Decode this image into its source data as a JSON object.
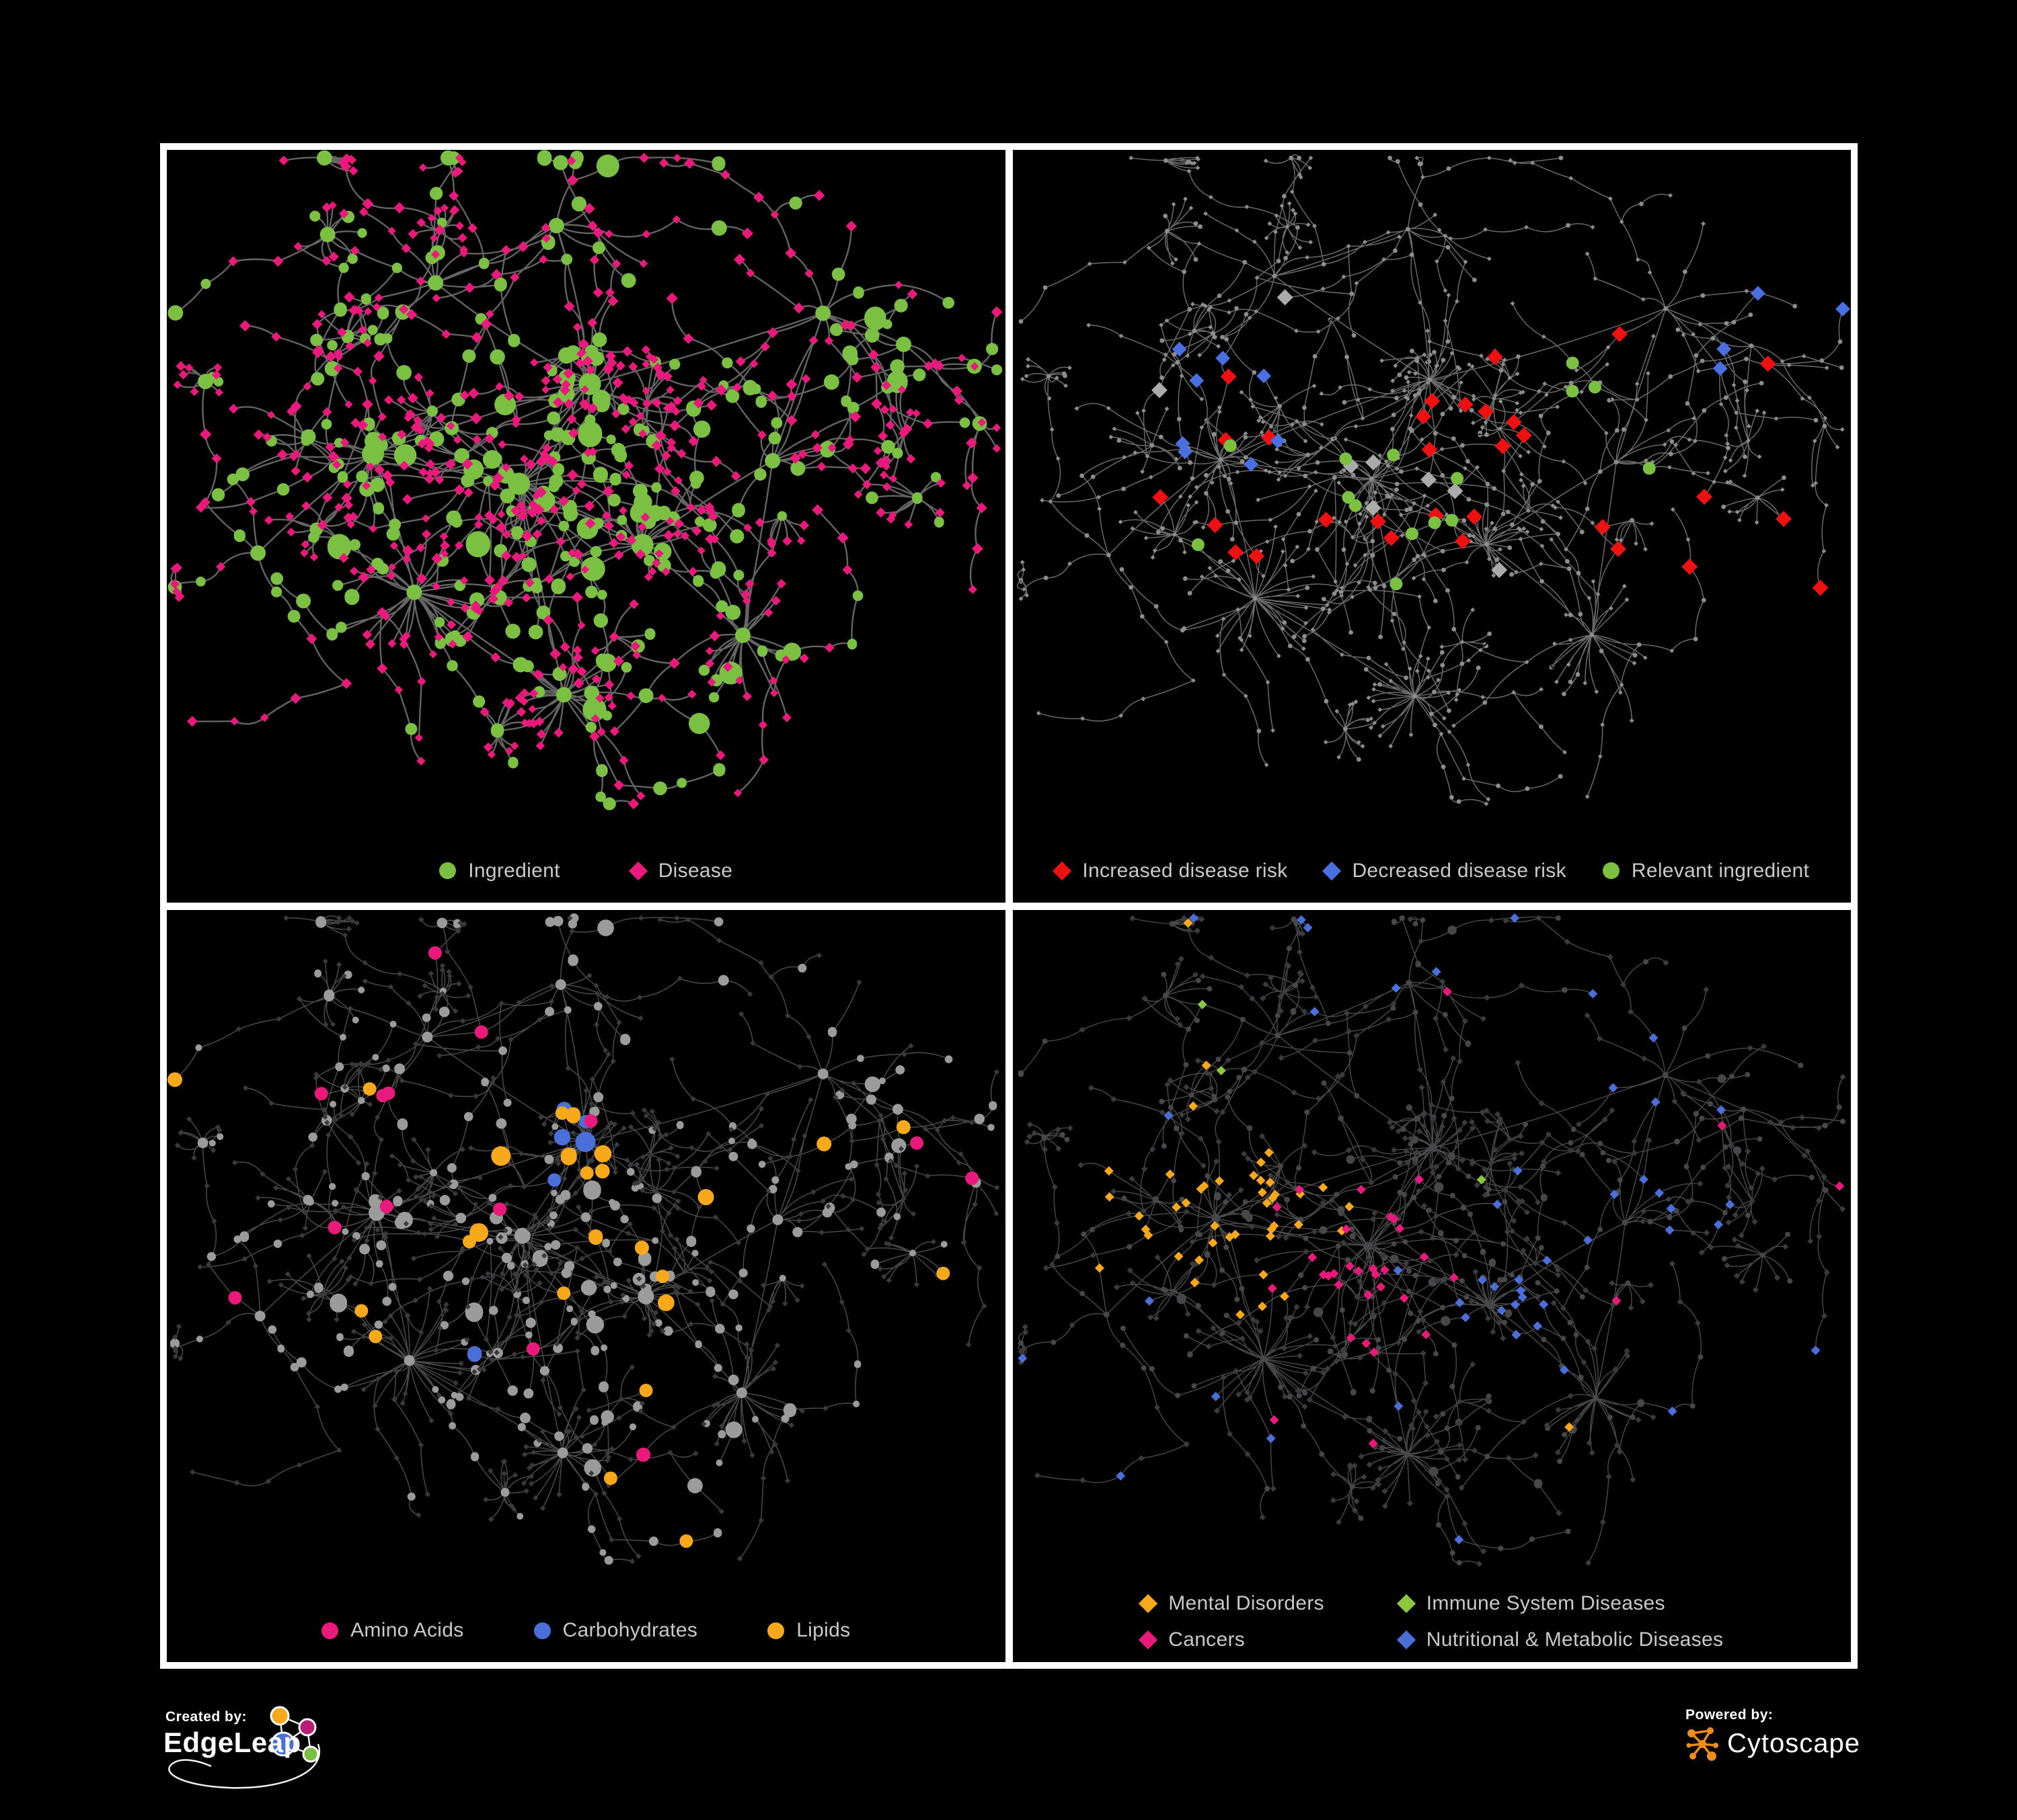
{
  "figure": {
    "background": "#000000",
    "panel_border": "#ffffff",
    "panel_background": "#000000",
    "legend_text_color": "#c9c9c9"
  },
  "panels": [
    {
      "id": "ingredient-disease",
      "legend": [
        {
          "label": "Ingredient",
          "shape": "circle",
          "color": "#7cc043"
        },
        {
          "label": "Disease",
          "shape": "diamond",
          "color": "#e91a7b"
        }
      ],
      "style": {
        "edge_color": "#6f6f6f",
        "edge_width": 2.4,
        "edge_opacity": 0.9,
        "circle_color": "#7cc043",
        "diamond_color": "#e91a7b"
      }
    },
    {
      "id": "disease-risk",
      "legend": [
        {
          "label": "Increased disease risk",
          "shape": "diamond",
          "color": "#ee1111"
        },
        {
          "label": "Decreased disease risk",
          "shape": "diamond",
          "color": "#4a6fe0"
        },
        {
          "label": "Relevant ingredient",
          "shape": "circle",
          "color": "#7cc043"
        }
      ],
      "style": {
        "edge_color": "#8e8e8e",
        "edge_width": 1.5,
        "edge_opacity": 0.75,
        "base_color": "#8d8d8d",
        "gray_highlight": "#ababab"
      }
    },
    {
      "id": "nutrient-classes",
      "legend": [
        {
          "label": "Amino Acids",
          "shape": "circle",
          "color": "#e91a7b"
        },
        {
          "label": "Carbohydrates",
          "shape": "circle",
          "color": "#4a6fd9"
        },
        {
          "label": "Lipids",
          "shape": "circle",
          "color": "#f7a81b"
        }
      ],
      "style": {
        "edge_color": "#a3a3a3",
        "edge_width": 1.5,
        "edge_opacity": 0.45,
        "gray_circle": "#9b9b9b",
        "dark_diamond": "#3a3a3e"
      }
    },
    {
      "id": "disease-classes",
      "legend": [
        {
          "label": "Mental Disorders",
          "shape": "diamond",
          "color": "#f7a81b"
        },
        {
          "label": "Immune System Diseases",
          "shape": "diamond",
          "color": "#8dc63f"
        },
        {
          "label": "Cancers",
          "shape": "diamond",
          "color": "#e91a7b"
        },
        {
          "label": "Nutritional & Metabolic Diseases",
          "shape": "diamond",
          "color": "#4a6fd9"
        }
      ],
      "style": {
        "edge_color": "#9a9a9a",
        "edge_width": 1.4,
        "edge_opacity": 0.48,
        "dark_diamond": "#3b3b3f",
        "dark_circle": "#47474b"
      }
    }
  ],
  "footer": {
    "created_by": {
      "label": "Created by:",
      "brand": "EdgeLeap",
      "icon": "edgeleap-network-logo",
      "logo_colors": [
        "#f7a81b",
        "#b91d73",
        "#4a6fd9",
        "#7cc043"
      ],
      "logo_stroke": "#ffffff"
    },
    "powered_by": {
      "label": "Powered by:",
      "brand": "Cytoscape",
      "icon": "cytoscape-network-logo",
      "accent": "#f08c1e"
    }
  }
}
